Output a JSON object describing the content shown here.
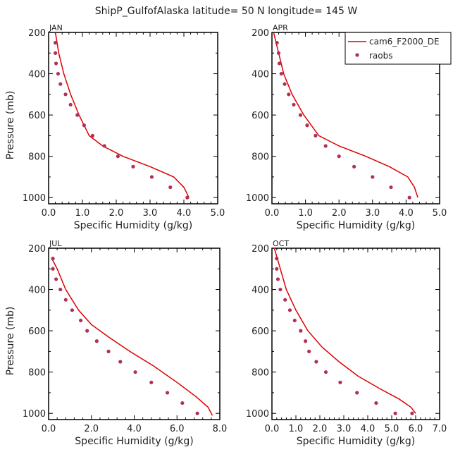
{
  "title": "ShipP_GulfofAlaska  latitude= 50 N longitude= 145 W",
  "legend": {
    "placement": "top-right",
    "model_label": "cam6_F2000_DE",
    "obs_label": "raobs"
  },
  "colors": {
    "model_line": "#dd0000",
    "obs_point": "#b0305a",
    "axis": "#000000"
  },
  "chart_data": [
    {
      "type": "line",
      "panel_label": "JAN",
      "xlabel": "Specific Humidity (g/kg)",
      "ylabel": "Pressure (mb)",
      "xlim": [
        0,
        5
      ],
      "ylim": [
        200,
        1030
      ],
      "y_inverted": true,
      "x_ticks": [
        "0.0",
        "1.0",
        "2.0",
        "3.0",
        "4.0",
        "5.0"
      ],
      "y_ticks": [
        "200",
        "400",
        "600",
        "800",
        "1000"
      ],
      "series": [
        {
          "name": "cam6_F2000_DE",
          "kind": "line",
          "x": [
            0.2,
            0.3,
            0.45,
            0.65,
            0.9,
            1.2,
            1.6,
            2.2,
            3.0,
            3.7,
            4.0,
            4.15
          ],
          "y": [
            200,
            300,
            400,
            500,
            600,
            700,
            750,
            800,
            850,
            900,
            950,
            1000
          ]
        },
        {
          "name": "raobs",
          "kind": "points",
          "x": [
            0.2,
            0.2,
            0.22,
            0.28,
            0.35,
            0.5,
            0.65,
            0.85,
            1.05,
            1.3,
            1.65,
            2.05,
            2.5,
            3.05,
            3.6,
            4.1
          ],
          "y": [
            250,
            300,
            350,
            400,
            450,
            500,
            550,
            600,
            650,
            700,
            750,
            800,
            850,
            900,
            950,
            1000
          ]
        }
      ]
    },
    {
      "type": "line",
      "panel_label": "APR",
      "xlabel": "Specific Humidity (g/kg)",
      "ylabel": "",
      "xlim": [
        0,
        5
      ],
      "ylim": [
        200,
        1030
      ],
      "y_inverted": true,
      "x_ticks": [
        "0.0",
        "1.0",
        "2.0",
        "3.0",
        "4.0",
        "5.0"
      ],
      "y_ticks": [
        "200",
        "400",
        "600",
        "800",
        "1000"
      ],
      "series": [
        {
          "name": "cam6_F2000_DE",
          "kind": "line",
          "x": [
            0.05,
            0.2,
            0.35,
            0.6,
            0.95,
            1.4,
            2.0,
            2.8,
            3.5,
            4.05,
            4.25,
            4.35
          ],
          "y": [
            200,
            300,
            400,
            500,
            600,
            700,
            750,
            800,
            850,
            900,
            950,
            1000
          ]
        },
        {
          "name": "raobs",
          "kind": "points",
          "x": [
            0.15,
            0.2,
            0.22,
            0.28,
            0.38,
            0.5,
            0.65,
            0.85,
            1.05,
            1.3,
            1.6,
            2.0,
            2.45,
            3.0,
            3.55,
            4.1
          ],
          "y": [
            250,
            300,
            350,
            400,
            450,
            500,
            550,
            600,
            650,
            700,
            750,
            800,
            850,
            900,
            950,
            1000
          ]
        }
      ]
    },
    {
      "type": "line",
      "panel_label": "JUL",
      "xlabel": "Specific Humidity (g/kg)",
      "ylabel": "Pressure (mb)",
      "xlim": [
        0,
        8
      ],
      "ylim": [
        200,
        1030
      ],
      "y_inverted": true,
      "x_ticks": [
        "0.0",
        "2.0",
        "4.0",
        "6.0",
        "8.0"
      ],
      "y_ticks": [
        "200",
        "400",
        "600",
        "800",
        "1000"
      ],
      "series": [
        {
          "name": "cam6_F2000_DE",
          "kind": "line",
          "x": [
            0.15,
            0.4,
            0.8,
            1.4,
            2.0,
            2.8,
            3.8,
            4.9,
            6.0,
            6.9,
            7.45,
            7.65
          ],
          "y": [
            250,
            300,
            400,
            500,
            570,
            630,
            700,
            770,
            850,
            920,
            970,
            1010
          ]
        },
        {
          "name": "raobs",
          "kind": "points",
          "x": [
            0.2,
            0.2,
            0.35,
            0.55,
            0.8,
            1.1,
            1.5,
            1.8,
            2.25,
            2.8,
            3.35,
            4.05,
            4.8,
            5.55,
            6.25,
            6.95
          ],
          "y": [
            250,
            300,
            350,
            400,
            450,
            500,
            550,
            600,
            650,
            700,
            750,
            800,
            850,
            900,
            950,
            1000
          ]
        }
      ]
    },
    {
      "type": "line",
      "panel_label": "OCT",
      "xlabel": "Specific Humidity (g/kg)",
      "ylabel": "",
      "xlim": [
        0,
        7
      ],
      "ylim": [
        200,
        1030
      ],
      "y_inverted": true,
      "x_ticks": [
        "0.0",
        "1.0",
        "2.0",
        "3.0",
        "4.0",
        "5.0",
        "6.0",
        "7.0"
      ],
      "y_ticks": [
        "200",
        "400",
        "600",
        "800",
        "1000"
      ],
      "series": [
        {
          "name": "cam6_F2000_DE",
          "kind": "line",
          "x": [
            0.1,
            0.35,
            0.6,
            1.0,
            1.5,
            2.1,
            2.8,
            3.6,
            4.5,
            5.3,
            5.8,
            6.0
          ],
          "y": [
            200,
            300,
            400,
            500,
            600,
            680,
            750,
            820,
            880,
            930,
            970,
            1000
          ]
        },
        {
          "name": "raobs",
          "kind": "points",
          "x": [
            0.2,
            0.2,
            0.25,
            0.35,
            0.55,
            0.75,
            0.95,
            1.2,
            1.4,
            1.55,
            1.85,
            2.25,
            2.85,
            3.55,
            4.35,
            5.15,
            5.85
          ],
          "y": [
            250,
            300,
            350,
            400,
            450,
            500,
            550,
            600,
            650,
            700,
            750,
            800,
            850,
            900,
            950,
            1000,
            1000
          ]
        }
      ]
    }
  ]
}
